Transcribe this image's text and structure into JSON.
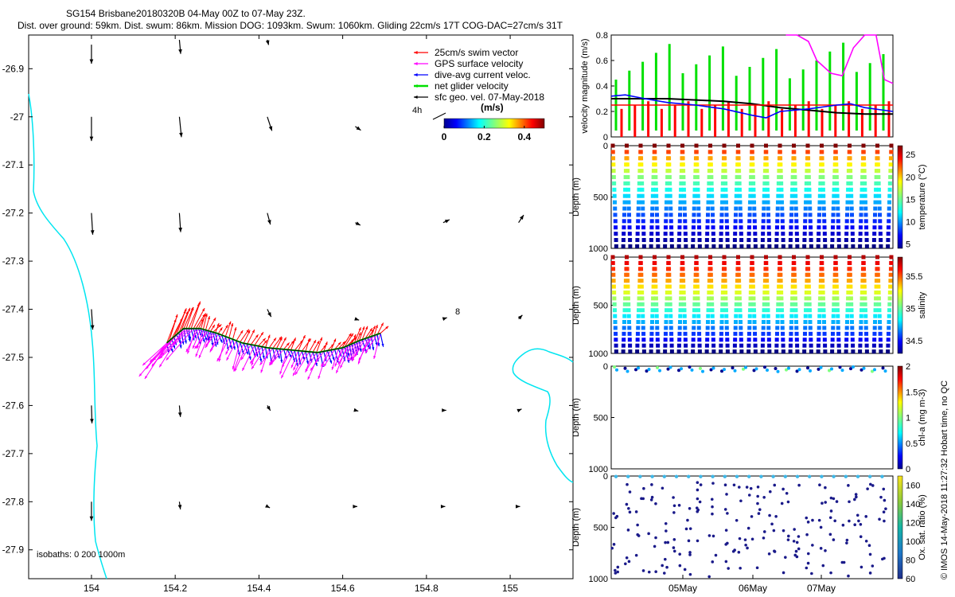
{
  "title": {
    "line1": "SG154 Brisbane20180320B 04-May 00Z to 07-May 23Z.",
    "line2": "Dist. over ground: 59km. Dist. swum: 86km. Mission DOG: 1093km. Swum: 1060km. Gliding 22cm/s 17T COG-DAC=27cm/s 31T"
  },
  "credit": "© IMOS 14-May-2018 11:27:32 Hobart time, no QC",
  "colors": {
    "coast": "#00e5f0",
    "swim": "#ff0000",
    "gps": "#ff00ff",
    "dac": "#0000ff",
    "net": "#00e000",
    "sfc": "#000000"
  },
  "chart_data": [
    {
      "type": "map",
      "xlim": [
        153.85,
        155.15
      ],
      "ylim": [
        -27.96,
        -26.83
      ],
      "x_ticks": [
        "154",
        "154.2",
        "154.4",
        "154.6",
        "154.8",
        "155"
      ],
      "y_ticks": [
        "-26.9",
        "-27",
        "-27.1",
        "-27.2",
        "-27.3",
        "-27.4",
        "-27.5",
        "-27.6",
        "-27.7",
        "-27.8",
        "-27.9"
      ],
      "legend": [
        {
          "label": "25cm/s swim vector",
          "color": "#ff0000"
        },
        {
          "label": "GPS surface velocity",
          "color": "#ff00ff"
        },
        {
          "label": "dive-avg current veloc.",
          "color": "#0000ff"
        },
        {
          "label": "net glider velocity",
          "color": "#00e000"
        },
        {
          "label": "sfc geo. vel. 07-May-2018",
          "color": "#000000"
        }
      ],
      "colorbar": {
        "title": "(m/s)",
        "ticks": [
          "0",
          "0.2",
          "0.4"
        ],
        "range": [
          0,
          0.5
        ]
      },
      "annotations": {
        "reference_label": "4h",
        "marker_label": "8",
        "isobaths": "isobaths: 0   200   1000m"
      },
      "geo_vectors": [
        {
          "lon": 154.0,
          "lat": -26.85,
          "u": 0.0,
          "v": -0.75
        },
        {
          "lon": 154.21,
          "lat": -26.84,
          "u": 0.05,
          "v": -0.55
        },
        {
          "lon": 154.42,
          "lat": -26.84,
          "u": 0.05,
          "v": -0.2
        },
        {
          "lon": 154.0,
          "lat": -27.0,
          "u": 0.0,
          "v": -0.95
        },
        {
          "lon": 154.21,
          "lat": -27.0,
          "u": 0.08,
          "v": -0.8
        },
        {
          "lon": 154.42,
          "lat": -27.0,
          "u": 0.18,
          "v": -0.55
        },
        {
          "lon": 154.63,
          "lat": -27.02,
          "u": 0.22,
          "v": -0.15
        },
        {
          "lon": 154.0,
          "lat": -27.2,
          "u": 0.05,
          "v": -0.85
        },
        {
          "lon": 154.21,
          "lat": -27.2,
          "u": 0.05,
          "v": -0.75
        },
        {
          "lon": 154.42,
          "lat": -27.2,
          "u": 0.12,
          "v": -0.45
        },
        {
          "lon": 154.63,
          "lat": -27.22,
          "u": 0.2,
          "v": -0.1
        },
        {
          "lon": 154.84,
          "lat": -27.22,
          "u": 0.25,
          "v": 0.12
        },
        {
          "lon": 155.02,
          "lat": -27.22,
          "u": 0.2,
          "v": 0.3
        },
        {
          "lon": 154.0,
          "lat": -27.4,
          "u": 0.05,
          "v": -0.8
        },
        {
          "lon": 154.42,
          "lat": -27.4,
          "u": 0.15,
          "v": -0.3
        },
        {
          "lon": 154.63,
          "lat": -27.42,
          "u": 0.15,
          "v": -0.05
        },
        {
          "lon": 154.84,
          "lat": -27.42,
          "u": 0.15,
          "v": 0.05
        },
        {
          "lon": 155.02,
          "lat": -27.42,
          "u": 0.15,
          "v": 0.15
        },
        {
          "lon": 154.0,
          "lat": -27.6,
          "u": 0.02,
          "v": -0.7
        },
        {
          "lon": 154.21,
          "lat": -27.6,
          "u": 0.04,
          "v": -0.45
        },
        {
          "lon": 154.42,
          "lat": -27.6,
          "u": 0.12,
          "v": -0.2
        },
        {
          "lon": 154.63,
          "lat": -27.61,
          "u": 0.12,
          "v": -0.03
        },
        {
          "lon": 154.84,
          "lat": -27.61,
          "u": 0.12,
          "v": 0.0
        },
        {
          "lon": 155.02,
          "lat": -27.61,
          "u": 0.12,
          "v": 0.05
        },
        {
          "lon": 154.0,
          "lat": -27.8,
          "u": 0.0,
          "v": -0.75
        },
        {
          "lon": 154.21,
          "lat": -27.8,
          "u": 0.04,
          "v": -0.3
        },
        {
          "lon": 154.42,
          "lat": -27.81,
          "u": 0.1,
          "v": -0.05
        },
        {
          "lon": 154.63,
          "lat": -27.81,
          "u": 0.08,
          "v": 0.0
        },
        {
          "lon": 154.84,
          "lat": -27.81,
          "u": 0.08,
          "v": 0.0
        },
        {
          "lon": 155.02,
          "lat": -27.81,
          "u": 0.06,
          "v": 0.0
        }
      ],
      "track": [
        {
          "lon": 154.18,
          "lat": -27.47
        },
        {
          "lon": 154.22,
          "lat": -27.44
        },
        {
          "lon": 154.26,
          "lat": -27.44
        },
        {
          "lon": 154.3,
          "lat": -27.45
        },
        {
          "lon": 154.36,
          "lat": -27.47
        },
        {
          "lon": 154.42,
          "lat": -27.48
        },
        {
          "lon": 154.48,
          "lat": -27.485
        },
        {
          "lon": 154.54,
          "lat": -27.49
        },
        {
          "lon": 154.6,
          "lat": -27.48
        },
        {
          "lon": 154.64,
          "lat": -27.465
        },
        {
          "lon": 154.69,
          "lat": -27.45
        }
      ]
    },
    {
      "type": "line",
      "ylabel": "velocity magnitude (m/s)",
      "ylim": [
        0,
        0.8
      ],
      "y_ticks": [
        "0",
        "0.2",
        "0.4",
        "0.6",
        "0.8"
      ],
      "series": [
        {
          "color": "#000000",
          "x": [
            0,
            0.1,
            0.2,
            0.3,
            0.4,
            0.5,
            0.6,
            0.7,
            0.8,
            0.9,
            1.0
          ],
          "values": [
            0.3,
            0.3,
            0.3,
            0.29,
            0.28,
            0.26,
            0.23,
            0.21,
            0.19,
            0.18,
            0.18
          ]
        },
        {
          "color": "#ff0000",
          "x": [
            0,
            1.0
          ],
          "values": [
            0.25,
            0.25
          ]
        },
        {
          "color": "#0000ff",
          "x": [
            0,
            0.05,
            0.12,
            0.2,
            0.3,
            0.4,
            0.5,
            0.55,
            0.6,
            0.7,
            0.8,
            0.85,
            0.9,
            1.0
          ],
          "values": [
            0.32,
            0.33,
            0.3,
            0.27,
            0.25,
            0.22,
            0.17,
            0.15,
            0.2,
            0.22,
            0.25,
            0.26,
            0.23,
            0.2
          ]
        },
        {
          "color": "#ff00ff",
          "x": [
            0.62,
            0.66,
            0.7,
            0.73,
            0.78,
            0.82,
            0.86,
            0.9,
            0.94,
            0.97,
            1.0
          ],
          "values": [
            0.8,
            0.8,
            0.75,
            0.6,
            0.5,
            0.48,
            0.7,
            0.8,
            0.8,
            0.45,
            0.42
          ]
        }
      ]
    },
    {
      "type": "heatmap",
      "ylabel": "Depth (m)",
      "ylim": [
        1000,
        0
      ],
      "y_ticks": [
        "0",
        "500",
        "1000"
      ],
      "colorbar_label": "temperature (°C)",
      "colorbar_ticks": [
        "5",
        "10",
        "15",
        "20",
        "25"
      ],
      "colorbar_range": [
        4,
        27
      ]
    },
    {
      "type": "heatmap",
      "ylabel": "Depth (m)",
      "ylim": [
        1000,
        0
      ],
      "y_ticks": [
        "0",
        "500",
        "1000"
      ],
      "colorbar_label": "salinity",
      "colorbar_ticks": [
        "34.5",
        "35",
        "35.5"
      ],
      "colorbar_range": [
        34.3,
        35.8
      ]
    },
    {
      "type": "scatter",
      "ylabel": "Depth (m)",
      "ylim": [
        1000,
        0
      ],
      "y_ticks": [
        "0",
        "500",
        "1000"
      ],
      "colorbar_label": "chl-a (mg m-3)",
      "colorbar_ticks": [
        "0",
        "0.5",
        "1",
        "1.5",
        "2"
      ],
      "colorbar_range": [
        0,
        2
      ]
    },
    {
      "type": "scatter",
      "ylabel": "Depth (m)",
      "ylim": [
        1000,
        0
      ],
      "y_ticks": [
        "0",
        "500",
        "1000"
      ],
      "x_ticks": [
        "05May",
        "06May",
        "07May"
      ],
      "colorbar_label": "Ox. sat. ratio (%)",
      "colorbar_ticks": [
        "60",
        "80",
        "100",
        "120",
        "140",
        "160"
      ],
      "colorbar_range": [
        60,
        170
      ]
    }
  ]
}
